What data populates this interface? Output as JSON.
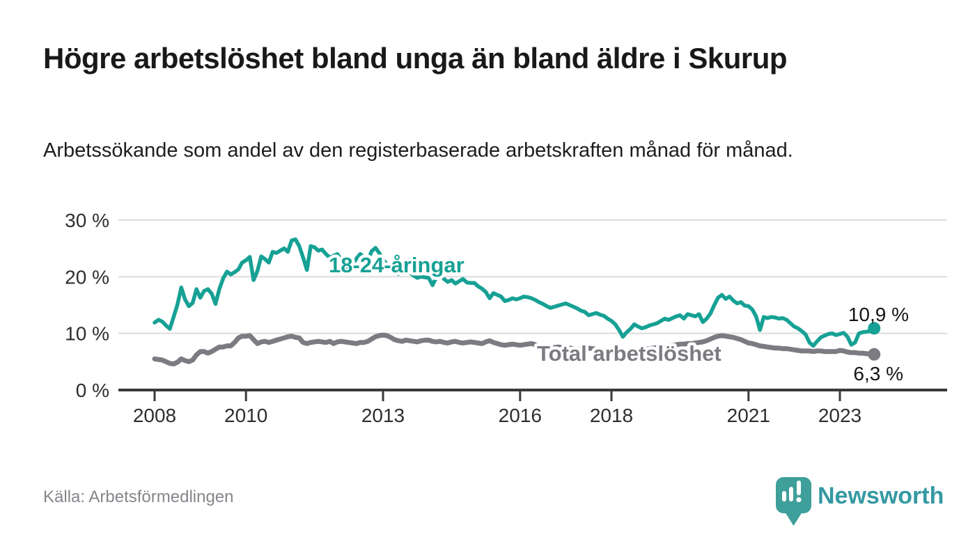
{
  "header": {
    "title": "Högre arbetslöshet bland unga än bland äldre i Skurup",
    "subtitle": "Arbetssökande som andel av den registerbaserade arbetskraften månad för månad."
  },
  "footer": {
    "source": "Källa: Arbetsförmedlingen",
    "brand": "Newsworthy"
  },
  "colors": {
    "youth": "#17a195",
    "total": "#7b7b81",
    "grid": "#dcdcdc",
    "axis": "#3a3a3a",
    "brand_bubble": "#3f9f9a",
    "brand_text": "#3599a2"
  },
  "chart_data": {
    "type": "line",
    "title": "Högre arbetslöshet bland unga än bland äldre i Skurup",
    "subtitle": "Arbetssökande som andel av den registerbaserade arbetskraften månad för månad.",
    "x_unit": "month",
    "x_start_year": 2008,
    "x_end": "2023-10",
    "ylim": [
      0,
      32
    ],
    "grid": true,
    "legend_position": "inline-labels",
    "yticks": [
      {
        "label": "30 %",
        "value": 30
      },
      {
        "label": "20 %",
        "value": 20
      },
      {
        "label": "10 %",
        "value": 10
      },
      {
        "label": "0 %",
        "value": 0
      }
    ],
    "xticks": [
      {
        "label": "2008",
        "year": 2008
      },
      {
        "label": "2010",
        "year": 2010
      },
      {
        "label": "2013",
        "year": 2013
      },
      {
        "label": "2016",
        "year": 2016
      },
      {
        "label": "2018",
        "year": 2018
      },
      {
        "label": "2021",
        "year": 2021
      },
      {
        "label": "2023",
        "year": 2023
      }
    ],
    "series": [
      {
        "name": "18-24-åringar",
        "color": "#17a195",
        "end_label": "10,9 %",
        "end_value": 10.9,
        "values": [
          11.9,
          12.4,
          12.1,
          11.4,
          10.8,
          12.9,
          15.1,
          18.1,
          16.0,
          14.8,
          15.4,
          17.8,
          16.3,
          17.5,
          17.8,
          17.0,
          15.2,
          17.8,
          19.7,
          20.9,
          20.4,
          20.8,
          21.3,
          22.5,
          22.9,
          23.5,
          19.4,
          21.0,
          23.6,
          23.1,
          22.5,
          24.4,
          24.2,
          24.6,
          25.0,
          24.4,
          26.4,
          26.6,
          25.4,
          23.4,
          21.2,
          25.4,
          25.2,
          24.6,
          24.8,
          24.0,
          23.4,
          23.7,
          24.0,
          23.0,
          22.4,
          21.2,
          22.0,
          23.2,
          24.0,
          23.5,
          22.8,
          24.5,
          25.1,
          24.2,
          23.0,
          22.2,
          21.5,
          21.0,
          20.5,
          21.0,
          21.5,
          20.8,
          20.2,
          19.8,
          20.0,
          19.9,
          19.8,
          18.5,
          19.9,
          20.3,
          19.6,
          19.1,
          19.4,
          18.8,
          19.2,
          19.6,
          19.0,
          18.9,
          18.9,
          18.3,
          17.9,
          17.3,
          16.2,
          17.1,
          16.8,
          16.5,
          15.7,
          15.9,
          16.2,
          16.0,
          16.2,
          16.5,
          16.4,
          16.2,
          15.9,
          15.5,
          15.2,
          14.8,
          14.5,
          14.7,
          14.9,
          15.1,
          15.3,
          15.0,
          14.7,
          14.4,
          14.0,
          13.8,
          13.2,
          13.4,
          13.6,
          13.3,
          13.1,
          12.6,
          12.2,
          11.6,
          10.6,
          9.4,
          10.2,
          10.8,
          11.6,
          11.2,
          10.9,
          11.1,
          11.4,
          11.6,
          11.8,
          12.2,
          12.6,
          12.4,
          12.7,
          13.0,
          13.2,
          12.6,
          13.4,
          13.2,
          13.0,
          13.4,
          12.0,
          12.6,
          13.5,
          15.0,
          16.3,
          16.8,
          16.1,
          16.5,
          15.8,
          15.3,
          15.5,
          14.9,
          14.8,
          14.2,
          13.0,
          10.6,
          12.9,
          12.7,
          12.9,
          12.8,
          12.6,
          12.7,
          12.4,
          11.8,
          11.2,
          10.9,
          10.4,
          9.8,
          8.4,
          7.8,
          8.6,
          9.3,
          9.6,
          9.9,
          10.0,
          9.7,
          9.9,
          10.1,
          9.4,
          8.0,
          8.4,
          10.0,
          10.2,
          10.3,
          10.4,
          10.9
        ]
      },
      {
        "name": "Total arbetslöshet",
        "color": "#7b7b81",
        "end_label": "6,3 %",
        "end_value": 6.3,
        "values": [
          5.5,
          5.4,
          5.3,
          5.0,
          4.7,
          4.6,
          4.9,
          5.5,
          5.2,
          5.0,
          5.3,
          6.2,
          6.8,
          6.8,
          6.5,
          6.8,
          7.2,
          7.6,
          7.6,
          7.8,
          7.8,
          8.4,
          9.2,
          9.5,
          9.5,
          9.6,
          8.9,
          8.2,
          8.5,
          8.6,
          8.4,
          8.6,
          8.8,
          9.0,
          9.2,
          9.4,
          9.5,
          9.3,
          9.2,
          8.4,
          8.2,
          8.4,
          8.5,
          8.6,
          8.5,
          8.4,
          8.6,
          8.2,
          8.5,
          8.6,
          8.5,
          8.4,
          8.3,
          8.2,
          8.4,
          8.4,
          8.6,
          9.0,
          9.4,
          9.6,
          9.7,
          9.6,
          9.3,
          8.9,
          8.7,
          8.6,
          8.8,
          8.7,
          8.6,
          8.5,
          8.7,
          8.8,
          8.8,
          8.6,
          8.5,
          8.6,
          8.4,
          8.3,
          8.5,
          8.6,
          8.4,
          8.3,
          8.4,
          8.5,
          8.4,
          8.3,
          8.2,
          8.5,
          8.7,
          8.4,
          8.2,
          8.0,
          7.9,
          8.0,
          8.1,
          8.0,
          7.9,
          8.0,
          8.1,
          8.2,
          8.0,
          7.8,
          7.6,
          7.5,
          7.4,
          7.5,
          7.6,
          7.5,
          7.4,
          7.4,
          7.3,
          7.2,
          7.2,
          7.3,
          7.4,
          7.3,
          7.2,
          7.1,
          7.0,
          7.0,
          7.0,
          6.9,
          6.9,
          6.8,
          6.8,
          6.9,
          7.0,
          7.0,
          7.1,
          7.2,
          7.3,
          7.4,
          7.5,
          7.6,
          7.7,
          7.8,
          7.9,
          8.0,
          8.1,
          8.1,
          8.2,
          8.2,
          8.3,
          8.4,
          8.5,
          8.7,
          9.0,
          9.3,
          9.5,
          9.6,
          9.5,
          9.4,
          9.3,
          9.1,
          8.9,
          8.6,
          8.3,
          8.2,
          8.0,
          7.8,
          7.7,
          7.6,
          7.5,
          7.4,
          7.4,
          7.3,
          7.3,
          7.2,
          7.1,
          7.0,
          6.9,
          6.9,
          6.9,
          6.8,
          6.9,
          6.9,
          6.8,
          6.8,
          6.8,
          6.8,
          7.0,
          6.9,
          6.7,
          6.6,
          6.6,
          6.5,
          6.5,
          6.4,
          6.4,
          6.3
        ]
      }
    ]
  }
}
